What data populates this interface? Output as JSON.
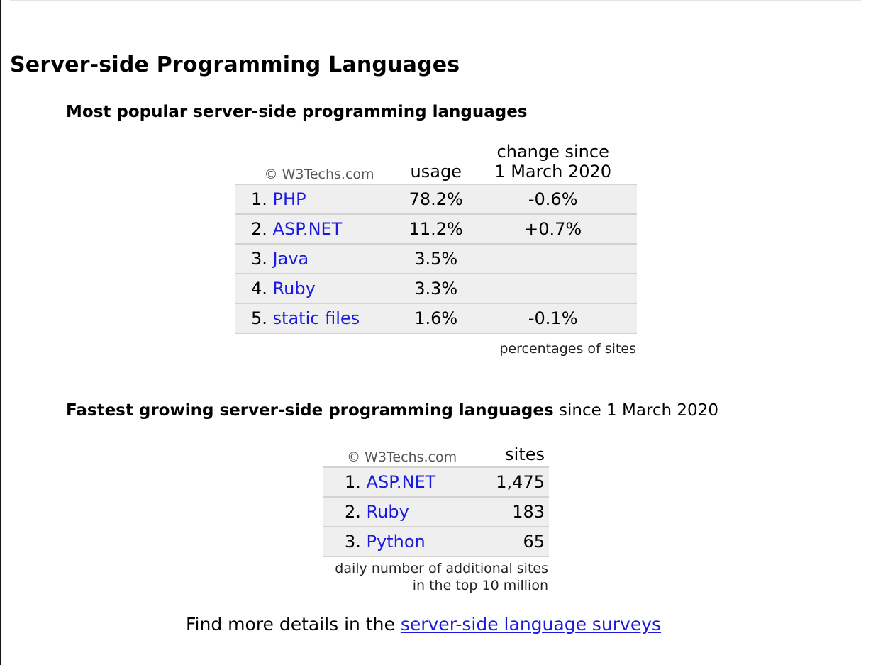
{
  "page_title": "Server-side Programming Languages",
  "popular": {
    "heading": "Most popular server-side programming languages",
    "copyright": "© W3Techs.com",
    "col_usage": "usage",
    "col_change_line1": "change since",
    "col_change_line2": "1 March 2020",
    "rows": [
      {
        "rank": "1.",
        "name": "PHP",
        "usage": "78.2%",
        "change": "-0.6%"
      },
      {
        "rank": "2.",
        "name": "ASP.NET",
        "usage": "11.2%",
        "change": "+0.7%"
      },
      {
        "rank": "3.",
        "name": "Java",
        "usage": "3.5%",
        "change": ""
      },
      {
        "rank": "4.",
        "name": "Ruby",
        "usage": "3.3%",
        "change": ""
      },
      {
        "rank": "5.",
        "name": "static files",
        "usage": "1.6%",
        "change": "-0.1%"
      }
    ],
    "note": "percentages of sites"
  },
  "growing": {
    "heading_bold": "Fastest growing server-side programming languages",
    "heading_normal": " since 1 March 2020",
    "copyright": "© W3Techs.com",
    "col_sites": "sites",
    "rows": [
      {
        "rank": "1.",
        "name": "ASP.NET",
        "sites": "1,475"
      },
      {
        "rank": "2.",
        "name": "Ruby",
        "sites": "183"
      },
      {
        "rank": "3.",
        "name": "Python",
        "sites": "65"
      }
    ],
    "note_line1": "daily number of additional sites",
    "note_line2": "in the top 10 million"
  },
  "footer": {
    "prefix": "Find more details in the ",
    "link": "server-side language surveys"
  },
  "colors": {
    "link": "#1a1ae0",
    "row_background": "#efefef",
    "row_border": "#d2d2d2"
  }
}
